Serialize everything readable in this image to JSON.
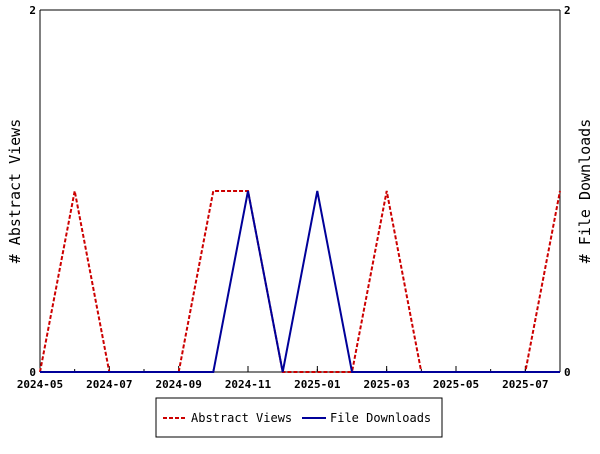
{
  "chart_data": {
    "type": "line",
    "x_ticks": [
      "2024-05",
      "2024-07",
      "2024-09",
      "2024-11",
      "2025-01",
      "2025-03",
      "2025-05",
      "2025-07"
    ],
    "x": [
      "2024-05",
      "2024-06",
      "2024-07",
      "2024-08",
      "2024-09",
      "2024-10",
      "2024-11",
      "2024-12",
      "2025-01",
      "2025-02",
      "2025-03",
      "2025-04",
      "2025-05",
      "2025-06",
      "2025-07",
      "2025-08"
    ],
    "series": [
      {
        "name": "Abstract Views",
        "color": "#cc0000",
        "dash": "dashed",
        "values": [
          0,
          1,
          0,
          0,
          0,
          1,
          1,
          0,
          0,
          0,
          1,
          0,
          0,
          0,
          0,
          1
        ]
      },
      {
        "name": "File Downloads",
        "color": "#000099",
        "dash": "solid",
        "values": [
          0,
          0,
          0,
          0,
          0,
          0,
          1,
          0,
          1,
          0,
          0,
          0,
          0,
          0,
          0,
          0
        ]
      }
    ],
    "ylabel_left": "# Abstract Views",
    "ylabel_right": "# File Downloads",
    "ylim": [
      0,
      2
    ],
    "y_ticks_left": [
      "0",
      "2"
    ],
    "y_ticks_right": [
      "0",
      "2"
    ],
    "legend_position": "bottom"
  }
}
